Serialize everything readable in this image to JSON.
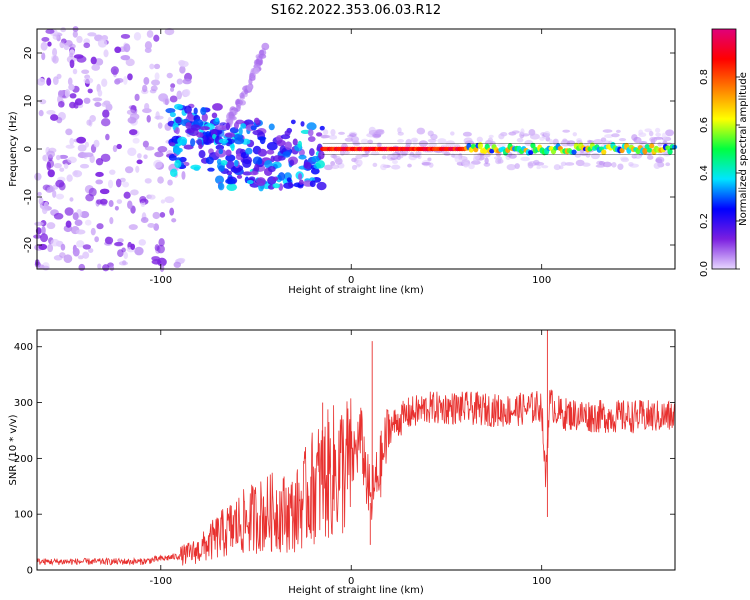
{
  "title": "S162.2022.353.06.03.R12",
  "chart_data": [
    {
      "type": "heatmap",
      "xlabel": "Height of straight line (km)",
      "ylabel": "Frequency (Hz)",
      "xlim": [
        -165,
        170
      ],
      "ylim": [
        -25,
        25
      ],
      "x_ticks": [
        -100,
        0,
        100
      ],
      "y_ticks": [
        -20,
        -10,
        0,
        10,
        20
      ],
      "colorbar": {
        "label": "Normalized spectral amplitude",
        "range": [
          0,
          1
        ],
        "ticks": [
          0.0,
          0.2,
          0.4,
          0.6,
          0.8
        ],
        "colors": [
          "#e8d8ff",
          "#7b1fe0",
          "#0000ff",
          "#00e5ff",
          "#00ff40",
          "#ffff00",
          "#ff8000",
          "#ff0000",
          "#e0007a"
        ]
      },
      "features": {
        "noise_region_km": [
          -165,
          -85
        ],
        "arc_km": [
          -90,
          -30
        ],
        "arc_peak_freq_hz": 22,
        "steady_line_km": [
          -15,
          170
        ],
        "steady_line_freq_hz": 0
      }
    },
    {
      "type": "line",
      "xlabel": "Height of straight line (km)",
      "ylabel": "SNR (10 * v/v)",
      "xlim": [
        -165,
        170
      ],
      "ylim": [
        0,
        430
      ],
      "x_ticks": [
        -100,
        0,
        100
      ],
      "y_ticks": [
        0,
        100,
        200,
        300,
        400
      ],
      "color": "#e8312f",
      "series": [
        {
          "name": "SNR",
          "x": [
            -165,
            -140,
            -110,
            -90,
            -80,
            -70,
            -60,
            -50,
            -40,
            -30,
            -20,
            -10,
            0,
            5,
            10,
            15,
            20,
            30,
            40,
            60,
            80,
            95,
            100,
            102,
            104,
            110,
            130,
            150,
            170
          ],
          "y": [
            15,
            15,
            15,
            25,
            35,
            60,
            80,
            95,
            105,
            100,
            150,
            175,
            190,
            240,
            120,
            180,
            255,
            280,
            290,
            290,
            285,
            290,
            295,
            160,
            300,
            280,
            275,
            275,
            275
          ]
        }
      ],
      "spikes": [
        {
          "x": 11,
          "y": 410
        },
        {
          "x": 10,
          "y": 45
        },
        {
          "x": 103,
          "y": 430
        },
        {
          "x": 103,
          "y": 95
        },
        {
          "x": -15,
          "y": 300
        }
      ]
    }
  ]
}
